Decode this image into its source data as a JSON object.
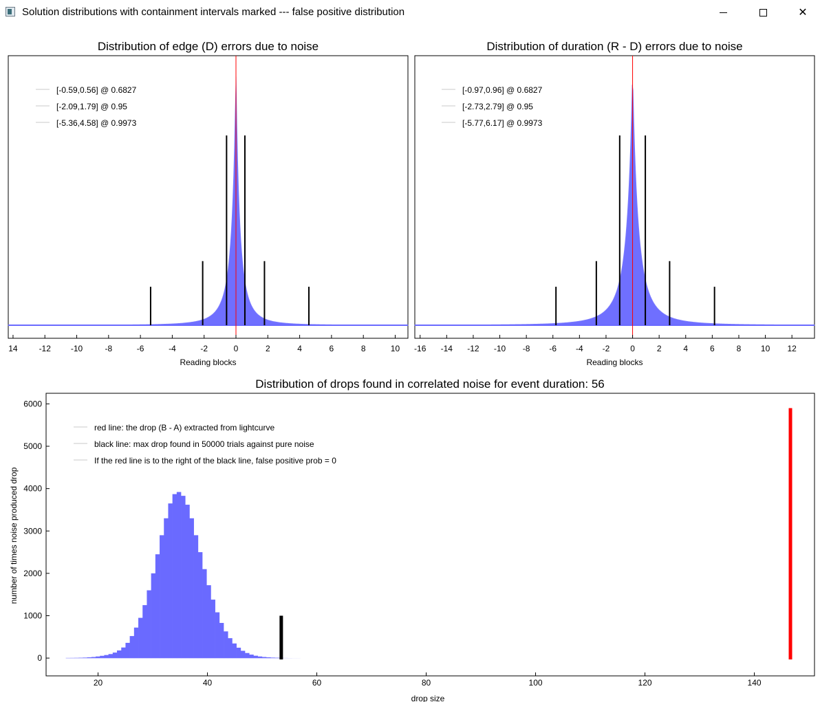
{
  "window": {
    "title": "Solution distributions with containment intervals marked --- false positive distribution",
    "minimize_glyph": "",
    "maximize_glyph": "",
    "close_glyph": "✕"
  },
  "chart_data": [
    {
      "type": "area",
      "title": "Distribution of edge (D) errors due to noise",
      "xlabel": "Reading blocks",
      "ylabel": "",
      "xlim": [
        -14.3,
        10.8
      ],
      "xticks": [
        14,
        -12,
        -10,
        -8,
        -6,
        -4,
        -2,
        0,
        2,
        4,
        6,
        8,
        10
      ],
      "distribution": {
        "center": 0,
        "scale_left": 0.56,
        "scale_right": 0.52,
        "shape": "laplace-like",
        "color": "#6a6aff"
      },
      "red_line_x": 0,
      "legend": [
        {
          "label": "[-0.59,0.56] @ 0.6827"
        },
        {
          "label": "[-2.09,1.79] @ 0.95"
        },
        {
          "label": "[-5.36,4.58] @ 0.9973"
        }
      ],
      "intervals": [
        {
          "low": -0.59,
          "high": 0.56,
          "level": 0.6827,
          "marker_height": 0.74
        },
        {
          "low": -2.09,
          "high": 1.79,
          "level": 0.95,
          "marker_height": 0.25
        },
        {
          "low": -5.36,
          "high": 4.58,
          "level": 0.9973,
          "marker_height": 0.15
        }
      ]
    },
    {
      "type": "area",
      "title": "Distribution of duration (R - D) errors due to noise",
      "xlabel": "Reading blocks",
      "ylabel": "",
      "xlim": [
        -16.4,
        13.7
      ],
      "xticks": [
        -16,
        -14,
        -12,
        -10,
        -8,
        -6,
        -4,
        -2,
        0,
        2,
        4,
        6,
        8,
        10,
        12
      ],
      "distribution": {
        "center": 0,
        "scale_left": 0.92,
        "scale_right": 0.92,
        "shape": "laplace-like",
        "color": "#6a6aff"
      },
      "red_line_x": 0,
      "legend": [
        {
          "label": "[-0.97,0.96] @ 0.6827"
        },
        {
          "label": "[-2.73,2.79] @ 0.95"
        },
        {
          "label": "[-5.77,6.17] @ 0.9973"
        }
      ],
      "intervals": [
        {
          "low": -0.97,
          "high": 0.96,
          "level": 0.6827,
          "marker_height": 0.74
        },
        {
          "low": -2.73,
          "high": 2.79,
          "level": 0.95,
          "marker_height": 0.25
        },
        {
          "low": -5.77,
          "high": 6.17,
          "level": 0.9973,
          "marker_height": 0.15
        }
      ]
    },
    {
      "type": "bar",
      "title": "Distribution of drops found in correlated noise for event duration: 56",
      "xlabel": "drop size",
      "ylabel": "number of times noise produced drop",
      "xlim": [
        10.5,
        151
      ],
      "ylim": [
        -420,
        6250
      ],
      "xticks": [
        20,
        40,
        60,
        80,
        100,
        120,
        140
      ],
      "yticks": [
        0,
        1000,
        2000,
        3000,
        4000,
        5000,
        6000
      ],
      "histogram": {
        "bin_start": 14.1,
        "bin_width": 0.78,
        "values": [
          2,
          3,
          5,
          8,
          12,
          18,
          26,
          38,
          54,
          72,
          95,
          130,
          180,
          250,
          360,
          520,
          720,
          950,
          1250,
          1600,
          2000,
          2450,
          2900,
          3300,
          3650,
          3870,
          3920,
          3830,
          3620,
          3300,
          2900,
          2500,
          2100,
          1720,
          1380,
          1080,
          830,
          630,
          470,
          345,
          245,
          172,
          120,
          82,
          56,
          38,
          26,
          18,
          12,
          8,
          5,
          3,
          2,
          1,
          1
        ],
        "color": "#6a6aff"
      },
      "black_line": {
        "x": 53.5,
        "height": 1000
      },
      "red_line": {
        "x": 146.6,
        "height": 5900
      },
      "legend": [
        {
          "label": "red line: the drop (B - A) extracted from lightcurve"
        },
        {
          "label": "black line: max drop found in 50000 trials against pure noise"
        },
        {
          "label": "If the red line is to the right of the black line, false positive prob = 0"
        }
      ]
    }
  ]
}
